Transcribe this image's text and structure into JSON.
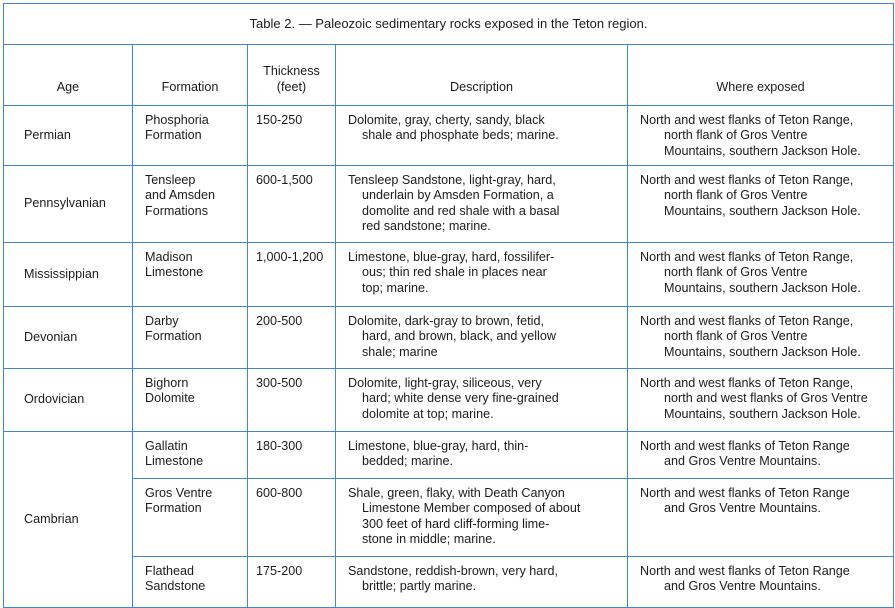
{
  "title": "Table 2. — Paleozoic sedimentary rocks exposed in the Teton region.",
  "headers": {
    "age": "Age",
    "formation": "Formation",
    "thickness": "Thickness\n(feet)",
    "description": "Description",
    "where": "Where exposed"
  },
  "rows": [
    {
      "age": "Permian",
      "formation": "Phosphoria\n Formation",
      "thickness": "150-250",
      "description": "Dolomite, gray, cherty, sandy, black\nshale and phosphate beds; marine.",
      "where": "North and west flanks of Teton Range,\nnorth flank of Gros Ventre\nMountains, southern Jackson Hole."
    },
    {
      "age": "Pennsylvanian",
      "formation": "Tensleep\n and Amsden\n Formations",
      "thickness": "600-1,500",
      "description": "Tensleep Sandstone, light-gray, hard,\nunderlain by Amsden Formation, a\ndomolite and red shale with a basal\nred sandstone; marine.",
      "where": "North and west flanks of Teton Range,\nnorth flank of Gros Ventre\nMountains, southern Jackson Hole."
    },
    {
      "age": "Mississippian",
      "formation": "Madison\n Limestone",
      "thickness": "1,000-1,200",
      "description": "Limestone, blue-gray, hard, fossilifer-\nous; thin red shale in places near\ntop; marine.",
      "where": "North and west flanks of Teton Range,\nnorth flank of Gros Ventre\nMountains, southern Jackson Hole."
    },
    {
      "age": "Devonian",
      "formation": "Darby\n Formation",
      "thickness": "200-500",
      "description": "Dolomite, dark-gray to brown, fetid,\nhard, and brown, black, and yellow\nshale; marine",
      "where": "North and west flanks of Teton Range,\nnorth flank of Gros Ventre\nMountains, southern Jackson Hole."
    },
    {
      "age": "Ordovician",
      "formation": "Bighorn\n Dolomite",
      "thickness": "300-500",
      "description": "Dolomite, light-gray, siliceous, very\nhard; white dense very fine-grained\ndolomite at top; marine.",
      "where": "North and west flanks of Teton Range,\nnorth and west flanks of Gros Ventre\nMountains, southern Jackson Hole."
    },
    {
      "age": "Cambrian",
      "formation": "Gallatin\n Limestone",
      "thickness": "180-300",
      "description": "Limestone, blue-gray, hard, thin-\nbedded; marine.",
      "where": "North and west flanks of Teton Range\nand Gros Ventre Mountains."
    },
    {
      "age": "",
      "formation": "Gros Ventre\n Formation",
      "thickness": "600-800",
      "description": "Shale, green, flaky, with Death Canyon\nLimestone Member composed of about\n300 feet of hard cliff-forming lime-\nstone  in middle; marine.",
      "where": "North and west flanks of Teton Range\nand Gros Ventre Mountains."
    },
    {
      "age": "",
      "formation": "Flathead\n Sandstone",
      "thickness": "175-200",
      "description": "Sandstone, reddish-brown, very hard,\nbrittle; partly marine.",
      "where": "North and west flanks of Teton Range\nand Gros Ventre Mountains."
    }
  ]
}
